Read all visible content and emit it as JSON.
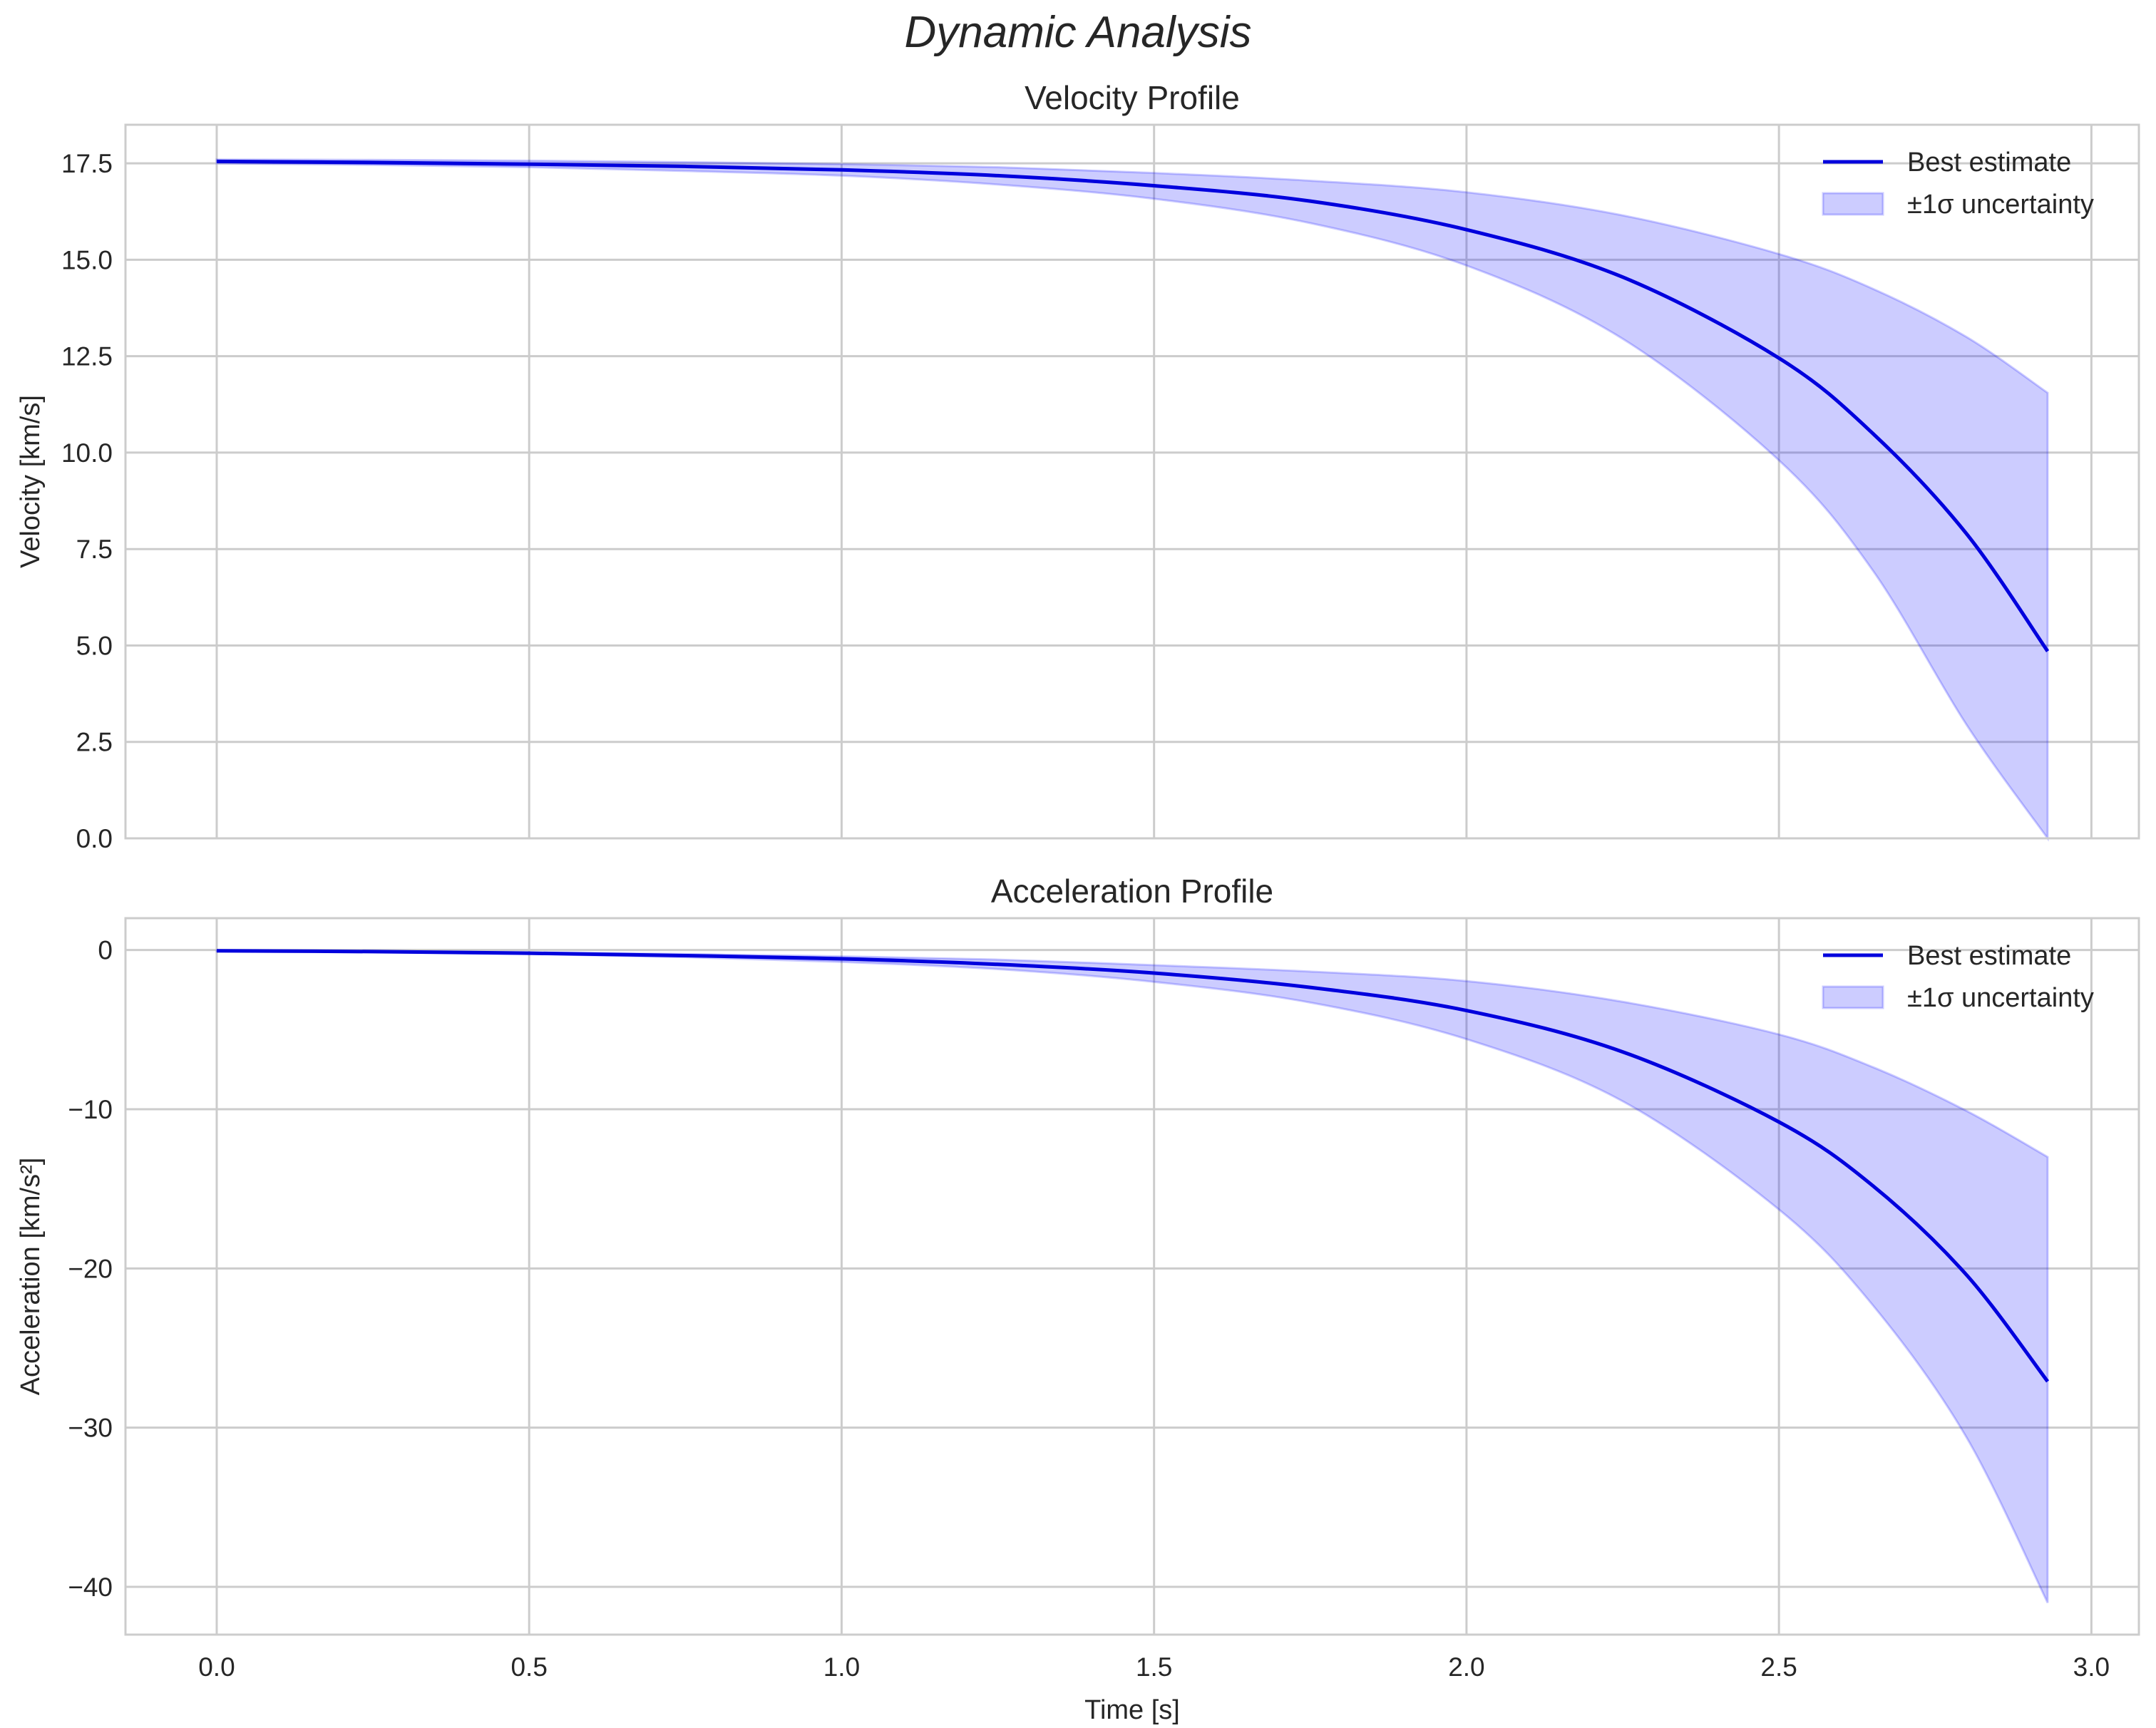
{
  "figure": {
    "suptitle": "Dynamic Analysis",
    "background": "#ffffff",
    "grid_color": "#cccccc",
    "spine_color": "#cccccc",
    "line_color": "#0000dd",
    "fill_color": "#0000ff",
    "fill_alpha": 0.2
  },
  "chart_data": [
    {
      "type": "line",
      "title": "Velocity Profile",
      "xlabel": "",
      "ylabel": "Velocity [km/s]",
      "xlim": [
        -0.146,
        3.076
      ],
      "ylim": [
        0.0,
        18.5
      ],
      "xticks": [
        "0.0",
        "0.5",
        "1.0",
        "1.5",
        "2.0",
        "2.5",
        "3.0"
      ],
      "yticks": [
        "0.0",
        "2.5",
        "5.0",
        "7.5",
        "10.0",
        "12.5",
        "15.0",
        "17.5"
      ],
      "ytick_values": [
        0,
        2.5,
        5,
        7.5,
        10,
        12.5,
        15,
        17.5
      ],
      "grid": true,
      "legend": {
        "position": "upper right",
        "entries": [
          "Best estimate",
          "±1σ uncertainty"
        ]
      },
      "series": [
        {
          "name": "Best estimate",
          "x": [
            0.0,
            0.25,
            0.5,
            0.75,
            1.0,
            1.25,
            1.5,
            1.75,
            2.0,
            2.25,
            2.5,
            2.65,
            2.8,
            2.93
          ],
          "values": [
            17.55,
            17.52,
            17.48,
            17.42,
            17.33,
            17.18,
            16.92,
            16.52,
            15.78,
            14.55,
            12.45,
            10.5,
            7.9,
            4.85
          ]
        },
        {
          "name": "±1σ uncertainty",
          "x": [
            0.0,
            0.25,
            0.5,
            0.75,
            1.0,
            1.25,
            1.5,
            1.75,
            2.0,
            2.25,
            2.5,
            2.65,
            2.8,
            2.93
          ],
          "upper": [
            17.6,
            17.59,
            17.57,
            17.53,
            17.48,
            17.4,
            17.25,
            17.05,
            16.75,
            16.15,
            15.15,
            14.25,
            13.0,
            11.55
          ],
          "lower": [
            17.5,
            17.46,
            17.4,
            17.3,
            17.18,
            16.95,
            16.58,
            15.95,
            14.85,
            12.95,
            9.8,
            6.95,
            2.95,
            0.0
          ]
        }
      ]
    },
    {
      "type": "line",
      "title": "Acceleration Profile",
      "xlabel": "Time [s]",
      "ylabel": "Acceleration [km/s²]",
      "xlim": [
        -0.146,
        3.076
      ],
      "ylim": [
        -43.0,
        2.0
      ],
      "xticks": [
        "0.0",
        "0.5",
        "1.0",
        "1.5",
        "2.0",
        "2.5",
        "3.0"
      ],
      "yticks": [
        "−40",
        "−30",
        "−20",
        "−10",
        "0"
      ],
      "ytick_values": [
        -40,
        -30,
        -20,
        -10,
        0
      ],
      "grid": true,
      "legend": {
        "position": "upper right",
        "entries": [
          "Best estimate",
          "±1σ uncertainty"
        ]
      },
      "series": [
        {
          "name": "Best estimate",
          "x": [
            0.0,
            0.25,
            0.5,
            0.75,
            1.0,
            1.25,
            1.5,
            1.75,
            2.0,
            2.25,
            2.5,
            2.65,
            2.8,
            2.93
          ],
          "values": [
            -0.05,
            -0.1,
            -0.2,
            -0.35,
            -0.55,
            -0.9,
            -1.45,
            -2.35,
            -3.8,
            -6.4,
            -10.8,
            -14.8,
            -20.4,
            -27.1
          ]
        },
        {
          "name": "±1σ uncertainty",
          "x": [
            0.0,
            0.25,
            0.5,
            0.75,
            1.0,
            1.25,
            1.5,
            1.75,
            2.0,
            2.25,
            2.5,
            2.65,
            2.8,
            2.93
          ],
          "upper": [
            -0.04,
            -0.08,
            -0.15,
            -0.25,
            -0.4,
            -0.6,
            -0.95,
            -1.35,
            -1.95,
            -3.25,
            -5.3,
            -7.35,
            -10.1,
            -13.0
          ],
          "lower": [
            -0.06,
            -0.12,
            -0.25,
            -0.45,
            -0.75,
            -1.2,
            -2.0,
            -3.3,
            -5.6,
            -9.5,
            -16.3,
            -22.3,
            -30.6,
            -41.0
          ]
        }
      ]
    }
  ]
}
